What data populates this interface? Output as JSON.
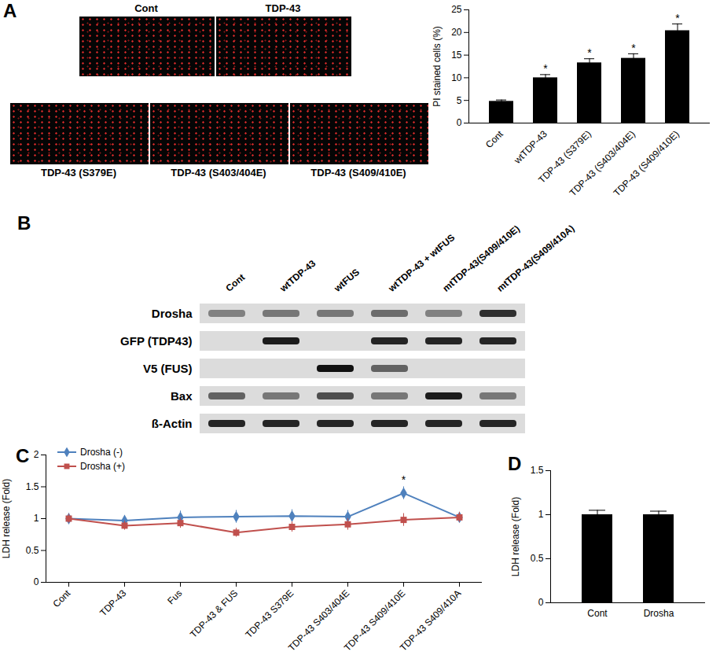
{
  "chart_data": [
    {
      "panel": "A",
      "type": "image",
      "images": [
        "Cont",
        "TDP-43",
        "TDP-43 (S379E)",
        "TDP-43 (S403/404E)",
        "TDP-43 (S409/410E)"
      ]
    },
    {
      "type": "bar",
      "categories": [
        "Cont",
        "wtTDP-43",
        "TDP-43 (S379E)",
        "TDP-43 (S403/404E)",
        "TDP-43 (S409/410E)"
      ],
      "values": [
        4.8,
        10,
        13.3,
        14.3,
        20.4
      ],
      "errors": [
        0.3,
        0.7,
        0.9,
        1.0,
        1.5
      ],
      "significance": [
        null,
        "*",
        "*",
        "*",
        "*"
      ],
      "color": "#000000",
      "ylabel": "PI stained cells (%)",
      "ylim": [
        0,
        25
      ],
      "yticks": [
        0,
        5,
        10,
        15,
        20,
        25
      ],
      "grid": false
    },
    {
      "panel": "B",
      "type": "blot",
      "lanes": [
        "Cont",
        "wtTDP-43",
        "wtFUS",
        "wtTDP-43 + wtFUS",
        "mtTDP-43(S409/410E)",
        "mtTDP-43(S409/410A)"
      ],
      "rows": [
        {
          "name": "Drosha",
          "values": [
            0.45,
            0.5,
            0.5,
            0.55,
            0.45,
            0.85
          ]
        },
        {
          "name": "GFP (TDP43)",
          "values": [
            null,
            0.95,
            null,
            0.9,
            0.9,
            0.9
          ]
        },
        {
          "name": "V5 (FUS)",
          "values": [
            null,
            null,
            1,
            0.6,
            null,
            null
          ]
        },
        {
          "name": "Bax",
          "values": [
            0.6,
            0.5,
            0.7,
            0.5,
            0.95,
            0.5
          ]
        },
        {
          "name": "ß-Actin",
          "values": [
            0.9,
            0.9,
            0.9,
            0.9,
            0.9,
            0.9
          ]
        }
      ]
    },
    {
      "panel": "C",
      "type": "line",
      "categories": [
        "Cont",
        "TDP-43",
        "Fus",
        "TDP-43 & FUS",
        "TDP-43 S379E",
        "TDP-43 S403/404E",
        "TDP-43 S409/410E",
        "TDP-43 S409/410A"
      ],
      "ylabel": "LDH release (Fold)",
      "ylim": [
        0,
        2
      ],
      "yticks": [
        0,
        0.5,
        1,
        1.5,
        2
      ],
      "grid": false,
      "legend": "top-left",
      "series": [
        {
          "name": "Drosha (-)",
          "color": "#4f81bd",
          "marker": "diamond",
          "values": [
            1.0,
            0.97,
            1.02,
            1.03,
            1.04,
            1.03,
            1.4,
            1.02
          ],
          "errors": [
            0.08,
            0.08,
            0.1,
            0.1,
            0.1,
            0.1,
            0.1,
            0.08
          ],
          "significance": [
            null,
            null,
            null,
            null,
            null,
            null,
            "*",
            null
          ]
        },
        {
          "name": "Drosha (+)",
          "color": "#c0504d",
          "marker": "square",
          "values": [
            1.0,
            0.89,
            0.93,
            0.78,
            0.87,
            0.91,
            0.98,
            1.02
          ],
          "errors": [
            0.07,
            0.07,
            0.08,
            0.07,
            0.08,
            0.09,
            0.1,
            0.08
          ]
        }
      ]
    },
    {
      "panel": "D",
      "type": "bar",
      "categories": [
        "Cont",
        "Drosha"
      ],
      "values": [
        1.0,
        1.0
      ],
      "errors": [
        0.05,
        0.04
      ],
      "color": "#000000",
      "ylabel": "LDH release (Fold)",
      "ylim": [
        0,
        1.5
      ],
      "yticks": [
        0,
        0.5,
        1,
        1.5
      ],
      "grid": false
    }
  ]
}
